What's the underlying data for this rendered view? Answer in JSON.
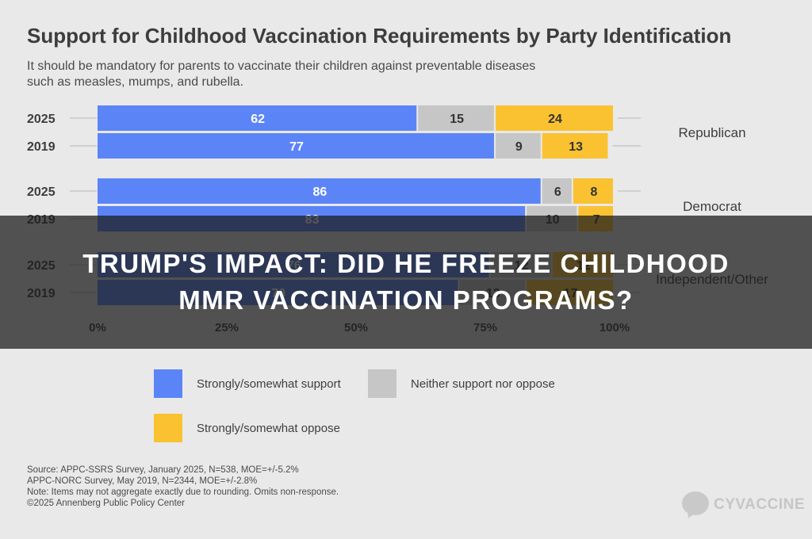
{
  "chart_data": {
    "type": "bar",
    "orientation": "horizontal",
    "stacked": true,
    "title": "Support for Childhood Vaccination Requirements by Party Identification",
    "subtitle_lines": [
      "It should be mandatory for parents to vaccinate their children against preventable diseases",
      "such as measles, mumps, and rubella."
    ],
    "groups": [
      {
        "label": "Republican",
        "rows": [
          {
            "year": "2025",
            "values": [
              62,
              15,
              24
            ]
          },
          {
            "year": "2019",
            "values": [
              77,
              9,
              13
            ]
          }
        ]
      },
      {
        "label": "Democrat",
        "rows": [
          {
            "year": "2025",
            "values": [
              86,
              6,
              8
            ]
          },
          {
            "year": "2019",
            "values": [
              83,
              10,
              7
            ]
          }
        ]
      },
      {
        "label": "Independent/Other",
        "rows": [
          {
            "year": "2025",
            "values": [
              76,
              12,
              12
            ]
          },
          {
            "year": "2019",
            "values": [
              70,
              13,
              17
            ]
          }
        ]
      }
    ],
    "series": [
      {
        "name": "Strongly/somewhat support",
        "color": "#5b85f7"
      },
      {
        "name": "Neither support nor oppose",
        "color": "#c6c6c6"
      },
      {
        "name": "Strongly/somewhat oppose",
        "color": "#fac230"
      }
    ],
    "x_ticks": [
      "0%",
      "25%",
      "50%",
      "75%",
      "100%"
    ],
    "xlim": [
      0,
      100
    ],
    "grid": false,
    "legend_position": "bottom",
    "source_lines": [
      "Source: APPC-SSRS Survey, January 2025, N=538, MOE=+/-5.2%",
      "APPC-NORC Survey, May 2019, N=2344, MOE=+/-2.8%",
      "Note: Items may not aggregate exactly due to rounding. Omits non-response.",
      "©2025 Annenberg Public Policy Center"
    ]
  },
  "overlay": {
    "headline_lines": [
      "TRUMP'S IMPACT: DID HE FREEZE CHILDHOOD",
      "MMR VACCINATION PROGRAMS?"
    ],
    "background": "#1c1c1c"
  },
  "brand": {
    "name": "CYVACCINE",
    "icon": "speech-bubble-icon"
  }
}
